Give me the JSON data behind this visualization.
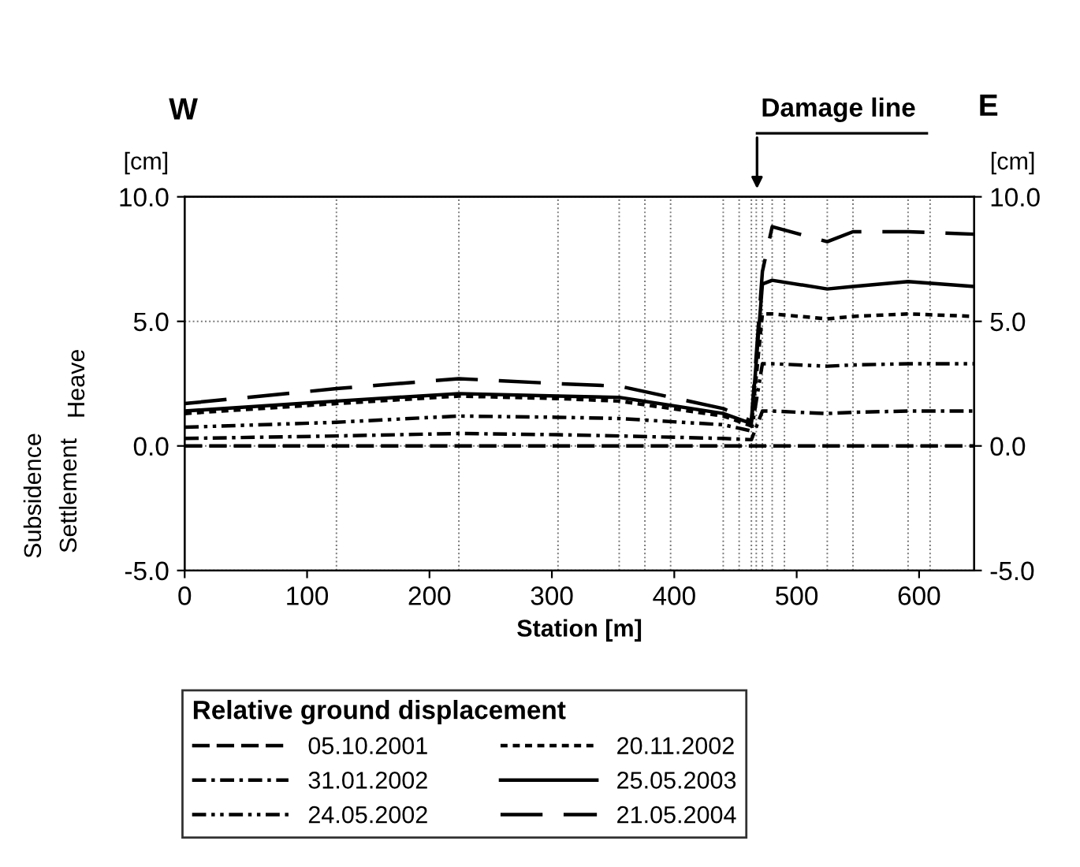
{
  "chart_data": {
    "type": "line",
    "xlabel": "Station [m]",
    "ylabel": "[cm]",
    "y2label": "[cm]",
    "legend_title": "Relative ground displacement",
    "x": [
      0,
      124,
      224,
      305,
      355,
      440,
      463,
      472,
      480,
      525,
      546,
      591,
      645
    ],
    "series": [
      {
        "name": "05.10.2001",
        "color": "#000000",
        "line_style": "dashed",
        "values": [
          0,
          0,
          0,
          0,
          0,
          0,
          0,
          0,
          0,
          0,
          0,
          0,
          0
        ]
      },
      {
        "name": "31.01.2002",
        "color": "#000000",
        "line_style": "dashdot",
        "values": [
          0.3,
          0.4,
          0.5,
          0.45,
          0.4,
          0.3,
          0.25,
          1.4,
          1.4,
          1.3,
          1.35,
          1.4,
          1.4
        ]
      },
      {
        "name": "24.05.2002",
        "color": "#000000",
        "line_style": "dashdotdot",
        "values": [
          0.75,
          0.95,
          1.2,
          1.15,
          1.1,
          0.85,
          0.6,
          3.3,
          3.3,
          3.2,
          3.25,
          3.3,
          3.3
        ]
      },
      {
        "name": "20.11.2002",
        "color": "#000000",
        "line_style": "dotted",
        "values": [
          1.3,
          1.7,
          2.0,
          1.9,
          1.8,
          1.2,
          0.8,
          5.3,
          5.3,
          5.1,
          5.2,
          5.3,
          5.2
        ]
      },
      {
        "name": "25.05.2003",
        "color": "#000000",
        "line_style": "solid",
        "values": [
          1.4,
          1.8,
          2.1,
          2.0,
          1.95,
          1.3,
          0.9,
          6.5,
          6.65,
          6.3,
          6.4,
          6.6,
          6.4
        ]
      },
      {
        "name": "21.05.2004",
        "color": "#000000",
        "line_style": "longdash",
        "values": [
          1.7,
          2.3,
          2.7,
          2.5,
          2.4,
          1.5,
          1.0,
          7.0,
          8.8,
          8.2,
          8.6,
          8.6,
          8.5
        ]
      }
    ],
    "xlim": [
      0,
      645
    ],
    "xticks": [
      0,
      100,
      200,
      300,
      400,
      500,
      600
    ],
    "ylim": [
      -5,
      10
    ],
    "yticks": [
      {
        "value": -5,
        "label": "-5.0"
      },
      {
        "value": 0,
        "label": "0.0"
      },
      {
        "value": 5,
        "label": "5.0"
      },
      {
        "value": 10,
        "label": "10.0"
      }
    ],
    "y2lim": [
      -5,
      10
    ],
    "y2ticks": [
      {
        "value": -5,
        "label": "-5.0"
      },
      {
        "value": 0,
        "label": "0.0"
      },
      {
        "value": 5,
        "label": "5.0"
      },
      {
        "value": 10,
        "label": "10.0"
      }
    ],
    "grid": "y",
    "legend": "bottom",
    "marker": "none",
    "ref_lines": [
      {
        "axis": "x",
        "value": 124
      },
      {
        "axis": "x",
        "value": 224
      },
      {
        "axis": "x",
        "value": 305
      },
      {
        "axis": "x",
        "value": 355
      },
      {
        "axis": "x",
        "value": 376
      },
      {
        "axis": "x",
        "value": 397
      },
      {
        "axis": "x",
        "value": 440
      },
      {
        "axis": "x",
        "value": 453
      },
      {
        "axis": "x",
        "value": 463
      },
      {
        "axis": "x",
        "value": 467
      },
      {
        "axis": "x",
        "value": 472
      },
      {
        "axis": "x",
        "value": 480
      },
      {
        "axis": "x",
        "value": 490
      },
      {
        "axis": "x",
        "value": 525
      },
      {
        "axis": "x",
        "value": 546
      },
      {
        "axis": "x",
        "value": 591
      },
      {
        "axis": "x",
        "value": 609
      }
    ],
    "annotations": [
      "W",
      "E",
      "Damage line",
      "Heave",
      "Subsidence",
      "Settlement"
    ]
  }
}
